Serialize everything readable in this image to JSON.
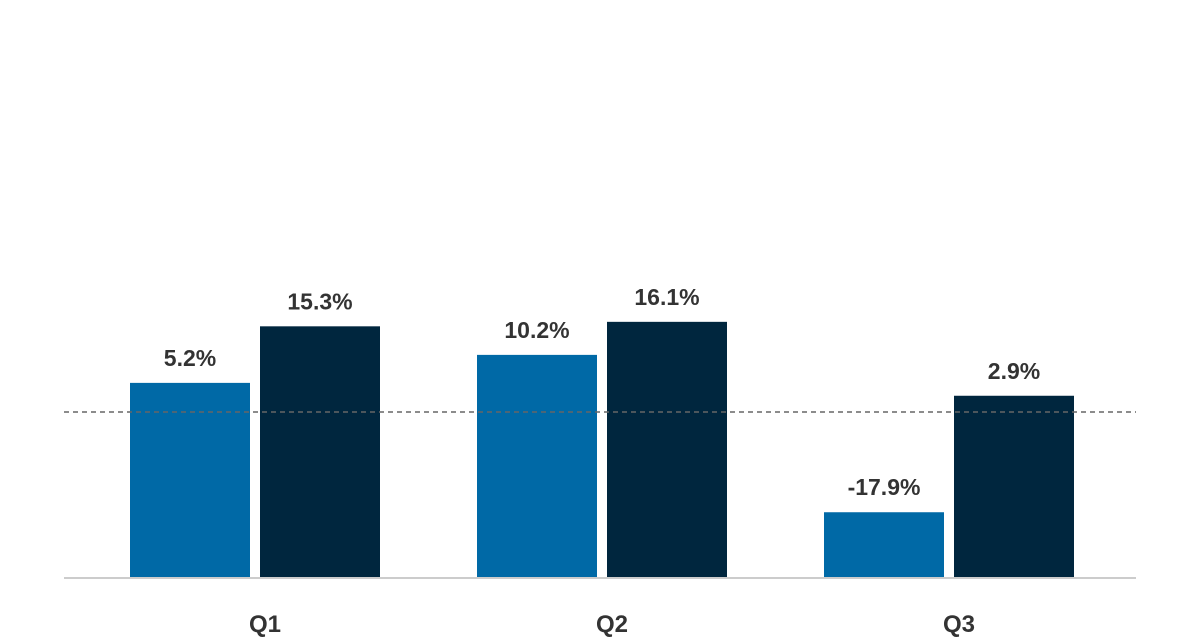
{
  "chart_data": {
    "type": "bar",
    "categories": [
      "Q1",
      "Q2",
      "Q3"
    ],
    "series": [
      {
        "values": [
          5.2,
          10.2,
          -17.9
        ],
        "labels": [
          "5.2%",
          "10.2%",
          "-17.9%"
        ],
        "color": "#0069A6"
      },
      {
        "values": [
          15.3,
          16.1,
          2.9
        ],
        "labels": [
          "15.3%",
          "16.1%",
          "2.9%"
        ],
        "color": "#00263E"
      }
    ],
    "title": "",
    "xlabel": "",
    "ylabel": "",
    "reference_line": 0,
    "grid": false,
    "legend": "none"
  },
  "colors": {
    "axis": "#cccccc",
    "reference_line": "#666666",
    "text": "#333333"
  }
}
